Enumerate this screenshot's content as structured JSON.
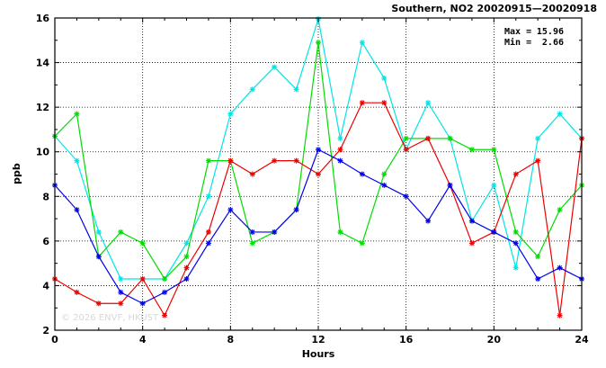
{
  "chart_data": {
    "type": "line",
    "title": "Southern, NO2 20020915—20020918",
    "xlabel": "Hours",
    "ylabel": "ppb",
    "xlim": [
      0,
      24
    ],
    "ylim": [
      2,
      16
    ],
    "xticks": [
      0,
      4,
      8,
      12,
      16,
      20,
      24
    ],
    "yticks": [
      2,
      4,
      6,
      8,
      10,
      12,
      14,
      16
    ],
    "grid": true,
    "annotations": {
      "max_label": "Max =",
      "max_value": "15.96",
      "min_label": "Min =",
      "min_value": "2.66",
      "watermark": "© 2026 ENVF, HKUST"
    },
    "x": [
      0,
      1,
      2,
      3,
      4,
      5,
      6,
      7,
      8,
      9,
      10,
      11,
      12,
      13,
      14,
      15,
      16,
      17,
      18,
      19,
      20,
      21,
      22,
      23,
      24
    ],
    "series": [
      {
        "color": "#00e5e5",
        "values": [
          10.7,
          9.6,
          6.4,
          4.3,
          4.3,
          4.3,
          5.9,
          8.0,
          11.7,
          12.8,
          13.8,
          12.8,
          15.96,
          10.6,
          14.9,
          13.3,
          10.1,
          12.2,
          10.6,
          6.9,
          8.5,
          4.8,
          10.6,
          11.7,
          10.6
        ]
      },
      {
        "color": "#00dd00",
        "values": [
          10.7,
          11.7,
          5.3,
          6.4,
          5.9,
          4.3,
          5.3,
          9.6,
          9.6,
          5.9,
          6.4,
          7.4,
          14.9,
          6.4,
          5.9,
          9.0,
          10.6,
          10.6,
          10.6,
          10.1,
          10.1,
          6.4,
          5.3,
          7.4,
          8.5
        ]
      },
      {
        "color": "#ee0000",
        "values": [
          4.3,
          3.7,
          3.2,
          3.2,
          4.3,
          2.66,
          4.8,
          6.4,
          9.6,
          9.0,
          9.6,
          9.6,
          9.0,
          10.1,
          12.2,
          12.2,
          10.1,
          10.6,
          8.5,
          5.9,
          6.4,
          9.0,
          9.6,
          2.66,
          10.6
        ]
      },
      {
        "color": "#0000ee",
        "values": [
          8.5,
          7.4,
          5.3,
          3.7,
          3.2,
          3.7,
          4.3,
          5.9,
          7.4,
          6.4,
          6.4,
          7.4,
          10.1,
          9.6,
          9.0,
          8.5,
          8.0,
          6.9,
          8.5,
          6.9,
          6.4,
          5.9,
          4.3,
          4.8,
          4.3
        ]
      }
    ]
  }
}
